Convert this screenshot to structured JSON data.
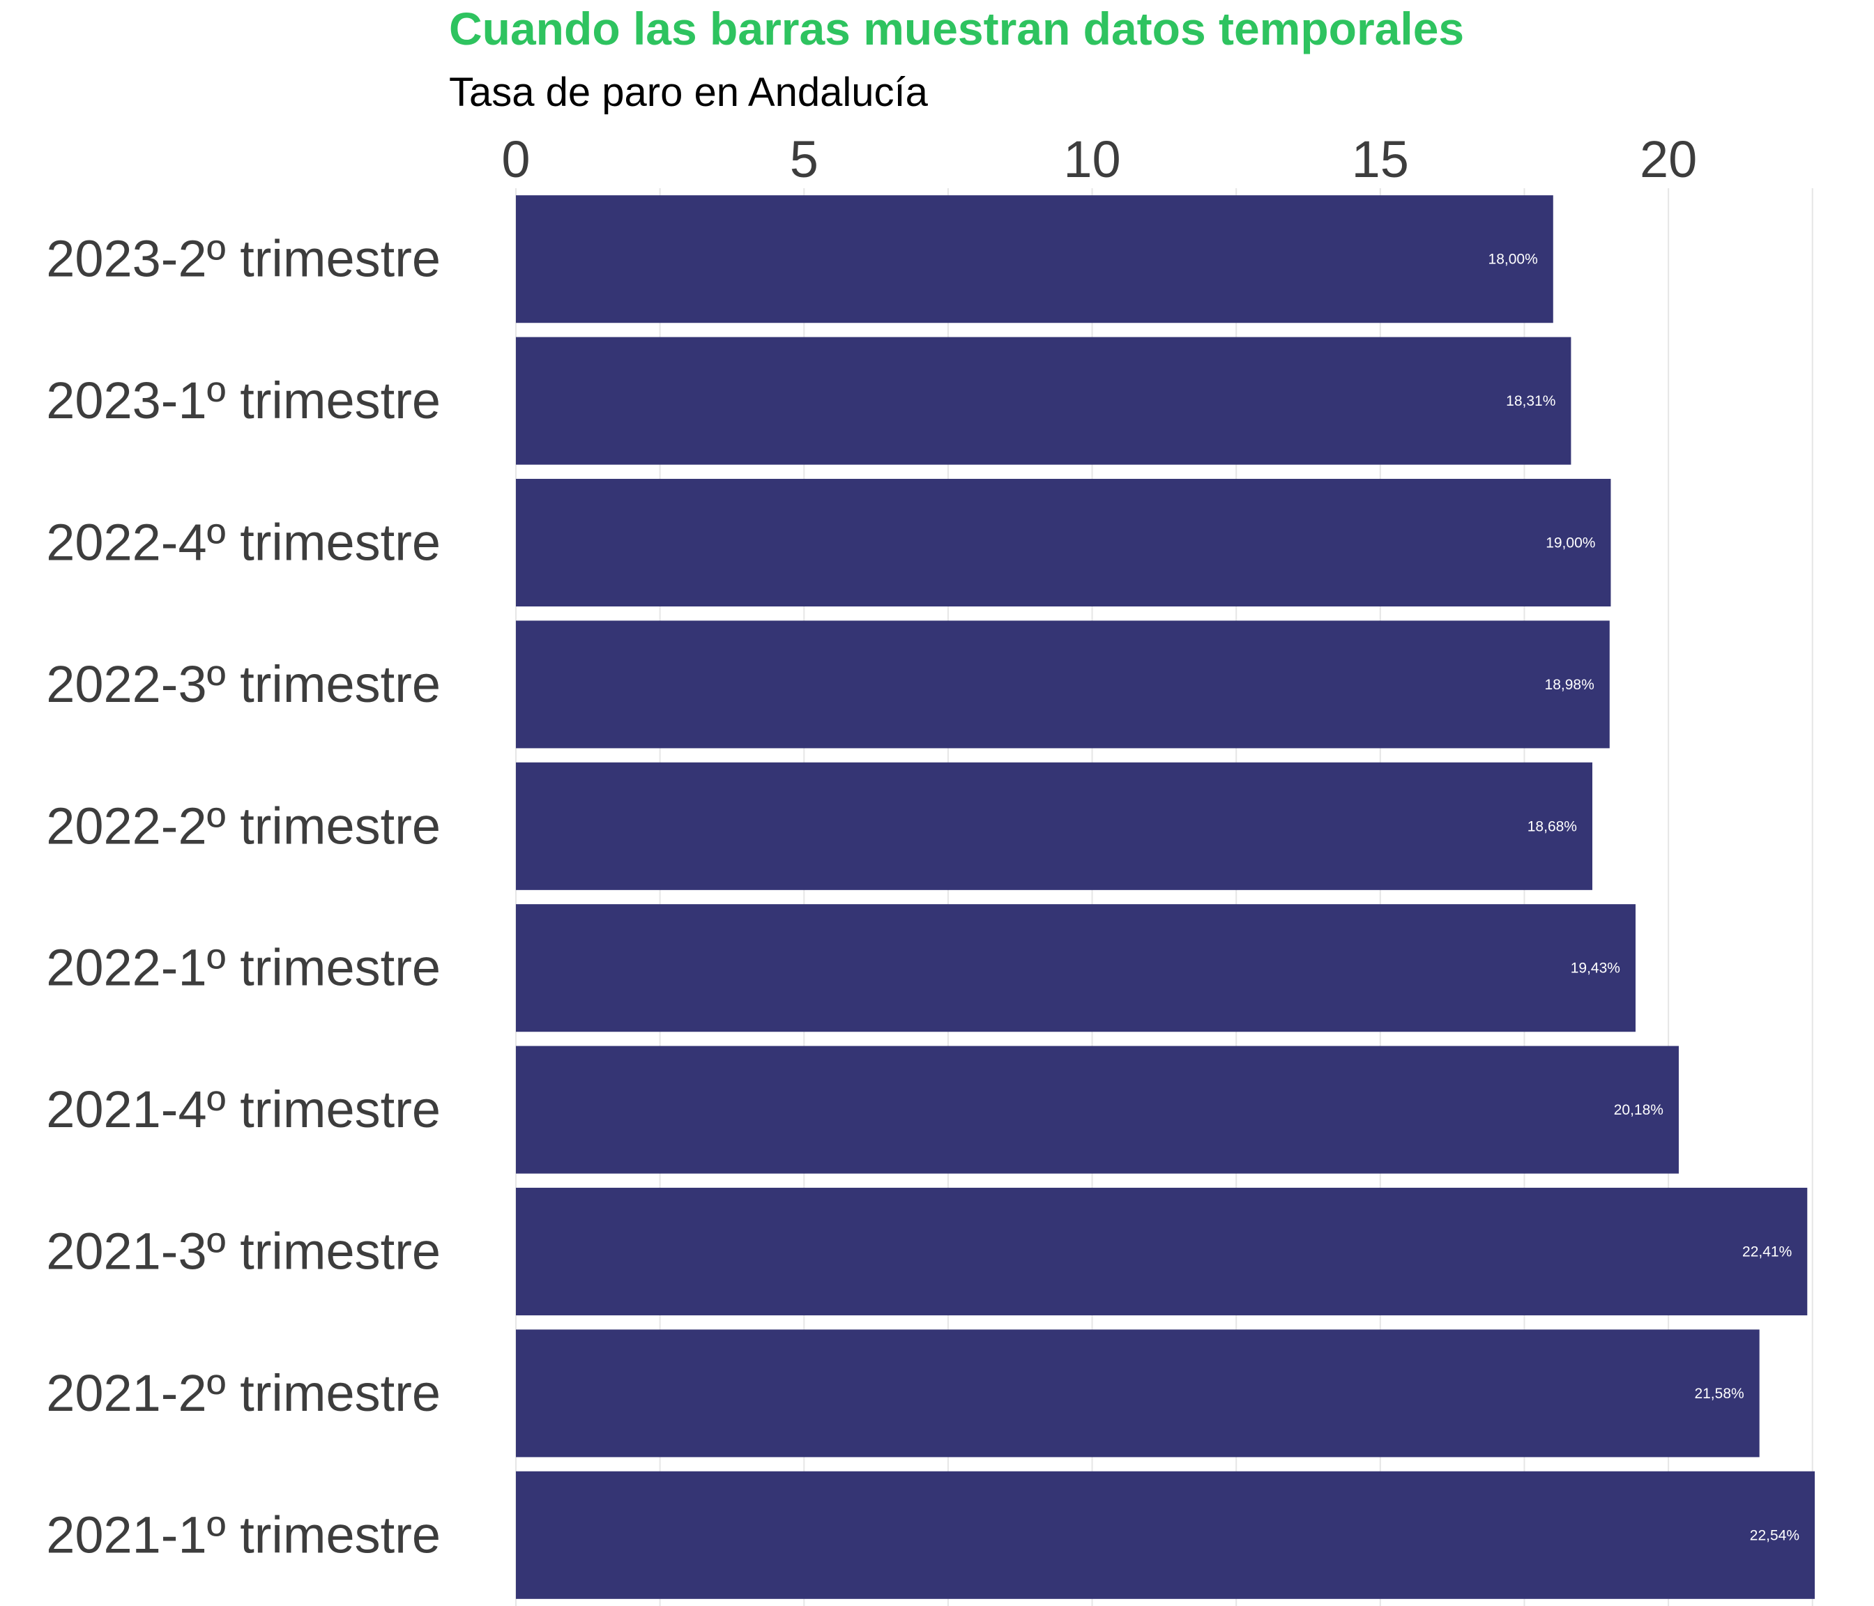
{
  "chart_data": {
    "type": "bar",
    "orientation": "horizontal",
    "title": "Cuando las barras muestran datos temporales",
    "subtitle": "Tasa de paro en Andalucía",
    "xlabel": "",
    "ylabel": "",
    "xlim": [
      0,
      22.6
    ],
    "x_ticks": [
      "0",
      "5",
      "10",
      "15",
      "20"
    ],
    "x_axis_position": "top",
    "grid": true,
    "categories": [
      "2023-2º trimestre",
      "2023-1º trimestre",
      "2022-4º trimestre",
      "2022-3º trimestre",
      "2022-2º trimestre",
      "2022-1º trimestre",
      "2021-4º trimestre",
      "2021-3º trimestre",
      "2021-2º trimestre",
      "2021-1º trimestre"
    ],
    "values": [
      18.0,
      18.31,
      19.0,
      18.98,
      18.68,
      19.43,
      20.18,
      22.41,
      21.58,
      22.54
    ],
    "data_labels": [
      "18,00%",
      "18,31%",
      "19,00%",
      "18,98%",
      "18,68%",
      "19,43%",
      "20,18%",
      "22,41%",
      "21,58%",
      "22,54%"
    ],
    "colors": {
      "bar": "#353574",
      "title": "#2ec35f",
      "grid": "#e6e6e6",
      "label": "#3d3d3d"
    }
  }
}
